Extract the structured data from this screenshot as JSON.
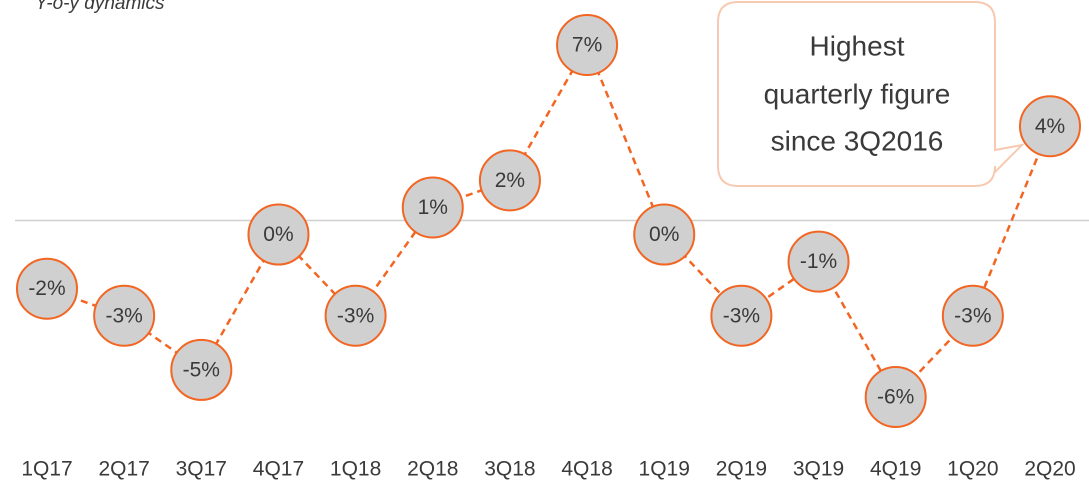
{
  "chart_data": {
    "type": "line",
    "subtitle": "Y-o-y dynamics",
    "categories": [
      "1Q17",
      "2Q17",
      "3Q17",
      "4Q17",
      "1Q18",
      "2Q18",
      "3Q18",
      "4Q18",
      "1Q19",
      "2Q19",
      "3Q19",
      "4Q19",
      "1Q20",
      "2Q20"
    ],
    "values": [
      -2,
      -3,
      -5,
      0,
      -3,
      1,
      2,
      7,
      0,
      -3,
      -1,
      -6,
      -3,
      4
    ],
    "value_labels": [
      "-2%",
      "-3%",
      "-5%",
      "0%",
      "-3%",
      "1%",
      "2%",
      "7%",
      "0%",
      "-3%",
      "-1%",
      "-6%",
      "-3%",
      "4%"
    ],
    "color": "#f26522",
    "marker_fill": "#d0d0d0",
    "ylim": [
      -7.5,
      8.5
    ],
    "annotation": [
      "Highest",
      "quarterly figure",
      "since 3Q2016"
    ]
  }
}
